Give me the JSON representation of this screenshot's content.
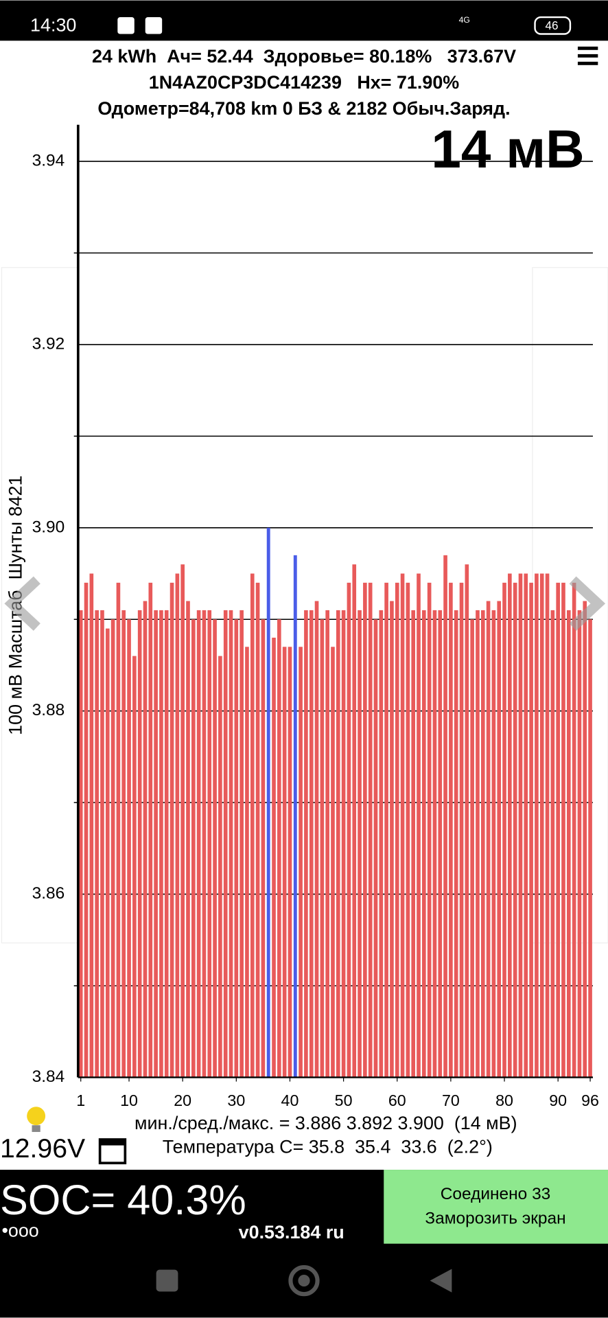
{
  "status_bar": {
    "time": "14:30",
    "network": "4G",
    "battery": "46"
  },
  "header": {
    "line1": "24 kWh  Ач= 52.44  Здоровье= 80.18%   373.67V",
    "line2": "1N4AZ0CP3DC414239   Hx= 71.90%",
    "line3": "Одометр=84,708 km 0 БЗ & 2182 Обыч.Заряд."
  },
  "chart_data": {
    "type": "bar",
    "annotation": "14 мВ",
    "y_label": "100 мВ Масштаб  Шунты 8421",
    "categories": [
      1,
      null,
      null,
      null,
      null,
      null,
      null,
      null,
      null,
      10,
      null,
      null,
      null,
      null,
      null,
      null,
      null,
      null,
      null,
      20,
      null,
      null,
      null,
      null,
      null,
      null,
      null,
      null,
      null,
      30,
      null,
      null,
      null,
      null,
      null,
      null,
      null,
      null,
      null,
      40,
      null,
      null,
      null,
      null,
      null,
      null,
      null,
      null,
      null,
      50,
      null,
      null,
      null,
      null,
      null,
      null,
      null,
      null,
      null,
      60,
      null,
      null,
      null,
      null,
      null,
      null,
      null,
      null,
      null,
      70,
      null,
      null,
      null,
      null,
      null,
      null,
      null,
      null,
      null,
      80,
      null,
      null,
      null,
      null,
      null,
      null,
      null,
      null,
      null,
      90,
      null,
      null,
      null,
      null,
      null,
      96
    ],
    "values": [
      3.891,
      3.894,
      3.895,
      3.891,
      3.891,
      3.889,
      3.89,
      3.894,
      3.891,
      3.89,
      3.886,
      3.891,
      3.892,
      3.894,
      3.891,
      3.891,
      3.891,
      3.894,
      3.895,
      3.896,
      3.892,
      3.89,
      3.891,
      3.891,
      3.891,
      3.89,
      3.886,
      3.891,
      3.891,
      3.89,
      3.891,
      3.887,
      3.895,
      3.894,
      3.89,
      3.9,
      3.888,
      3.89,
      3.887,
      3.887,
      3.897,
      3.887,
      3.891,
      3.891,
      3.892,
      3.89,
      3.891,
      3.887,
      3.891,
      3.891,
      3.894,
      3.896,
      3.891,
      3.894,
      3.894,
      3.89,
      3.891,
      3.894,
      3.892,
      3.894,
      3.895,
      3.894,
      3.891,
      3.895,
      3.891,
      3.894,
      3.891,
      3.891,
      3.897,
      3.894,
      3.891,
      3.894,
      3.896,
      3.89,
      3.891,
      3.891,
      3.892,
      3.891,
      3.892,
      3.894,
      3.895,
      3.894,
      3.895,
      3.895,
      3.894,
      3.895,
      3.895,
      3.895,
      3.891,
      3.894,
      3.894,
      3.891,
      3.894,
      3.891,
      3.892,
      3.89
    ],
    "color": "#e85a5a",
    "highlight_color": "#4a5de8",
    "colors": [
      "#e85a5a",
      "#e85a5a",
      "#e85a5a",
      "#e85a5a",
      "#e85a5a",
      "#e85a5a",
      "#e85a5a",
      "#e85a5a",
      "#e85a5a",
      "#e85a5a",
      "#e85a5a",
      "#e85a5a",
      "#e85a5a",
      "#e85a5a",
      "#e85a5a",
      "#e85a5a",
      "#e85a5a",
      "#e85a5a",
      "#e85a5a",
      "#e85a5a",
      "#e85a5a",
      "#e85a5a",
      "#e85a5a",
      "#e85a5a",
      "#e85a5a",
      "#e85a5a",
      "#e85a5a",
      "#e85a5a",
      "#e85a5a",
      "#e85a5a",
      "#e85a5a",
      "#e85a5a",
      "#e85a5a",
      "#e85a5a",
      "#e85a5a",
      "#4a5de8",
      "#e85a5a",
      "#e85a5a",
      "#e85a5a",
      "#e85a5a",
      "#4a5de8",
      "#e85a5a",
      "#e85a5a",
      "#e85a5a",
      "#e85a5a",
      "#e85a5a",
      "#e85a5a",
      "#e85a5a",
      "#e85a5a",
      "#e85a5a",
      "#e85a5a",
      "#e85a5a",
      "#e85a5a",
      "#e85a5a",
      "#e85a5a",
      "#e85a5a",
      "#e85a5a",
      "#e85a5a",
      "#e85a5a",
      "#e85a5a",
      "#e85a5a",
      "#e85a5a",
      "#e85a5a",
      "#e85a5a",
      "#e85a5a",
      "#e85a5a",
      "#e85a5a",
      "#e85a5a",
      "#e85a5a",
      "#e85a5a",
      "#e85a5a",
      "#e85a5a",
      "#e85a5a",
      "#e85a5a",
      "#e85a5a",
      "#e85a5a",
      "#e85a5a",
      "#e85a5a",
      "#e85a5a",
      "#e85a5a",
      "#e85a5a",
      "#e85a5a",
      "#e85a5a",
      "#e85a5a",
      "#e85a5a",
      "#e85a5a",
      "#e85a5a",
      "#e85a5a",
      "#e85a5a",
      "#e85a5a",
      "#e85a5a",
      "#e85a5a",
      "#e85a5a",
      "#e85a5a",
      "#e85a5a",
      "#e85a5a"
    ],
    "ylim": [
      3.84,
      3.944
    ],
    "yticks": [
      3.84,
      3.86,
      3.88,
      {
        "value": 3.9,
        "label": "3.90"
      },
      3.92,
      3.94
    ],
    "yminorticks": [
      3.85,
      3.87,
      3.89,
      3.91,
      3.93
    ],
    "grid": true
  },
  "footer": {
    "stats": "мин./сред./макс. = 3.886 3.892 3.900  (14 мВ)",
    "voltage": "12.96V",
    "temperature": "Температура C= 35.8  35.4  33.6  (2.2°)",
    "soc": "SOC= 40.3%",
    "dots": "•ooo",
    "version": "v0.53.184 ru",
    "connected": "Соединено 33",
    "freeze": "Заморозить экран"
  }
}
